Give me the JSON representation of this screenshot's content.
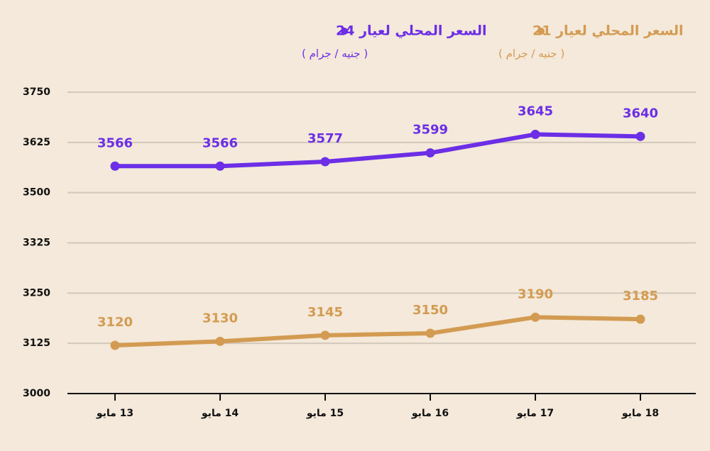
{
  "chart_data": {
    "type": "line",
    "categories": [
      "13 مايو",
      "14 مايو",
      "15 مايو",
      "16 مايو",
      "17 مايو",
      "18 مايو"
    ],
    "series": [
      {
        "name": "السعر المحلي لعيار 24",
        "unit_label": "( جنيه / جرام )",
        "color": "#6c2ee6",
        "values": [
          3566,
          3566,
          3577,
          3599,
          3645,
          3640
        ]
      },
      {
        "name": "السعر المحلي لعيار 21",
        "unit_label": "( جنيه / جرام )",
        "color": "#d39b52",
        "values": [
          3120,
          3130,
          3145,
          3150,
          3190,
          3185
        ]
      }
    ],
    "ylim": [
      3000,
      3750
    ],
    "yticks": [
      3000,
      3125,
      3250,
      3325,
      3500,
      3625,
      3750
    ],
    "grid": true
  }
}
